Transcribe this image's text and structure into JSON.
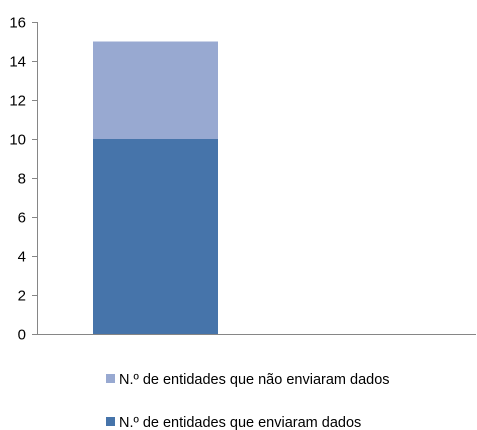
{
  "chart_data": {
    "type": "bar",
    "stacked": true,
    "categories": [
      ""
    ],
    "series": [
      {
        "name": "N.º de entidades que enviaram dados",
        "values": [
          10
        ],
        "color": "#4674AA"
      },
      {
        "name": "N.º de entidades que não enviaram dados",
        "values": [
          5
        ],
        "color": "#98A9D1"
      }
    ],
    "legend_order": [
      1,
      0
    ],
    "ylim": [
      0,
      16
    ],
    "yticks": [
      0,
      2,
      4,
      6,
      8,
      10,
      12,
      14,
      16
    ],
    "grid": false,
    "legend_position": "bottom",
    "title": "",
    "xlabel": "",
    "ylabel": ""
  }
}
